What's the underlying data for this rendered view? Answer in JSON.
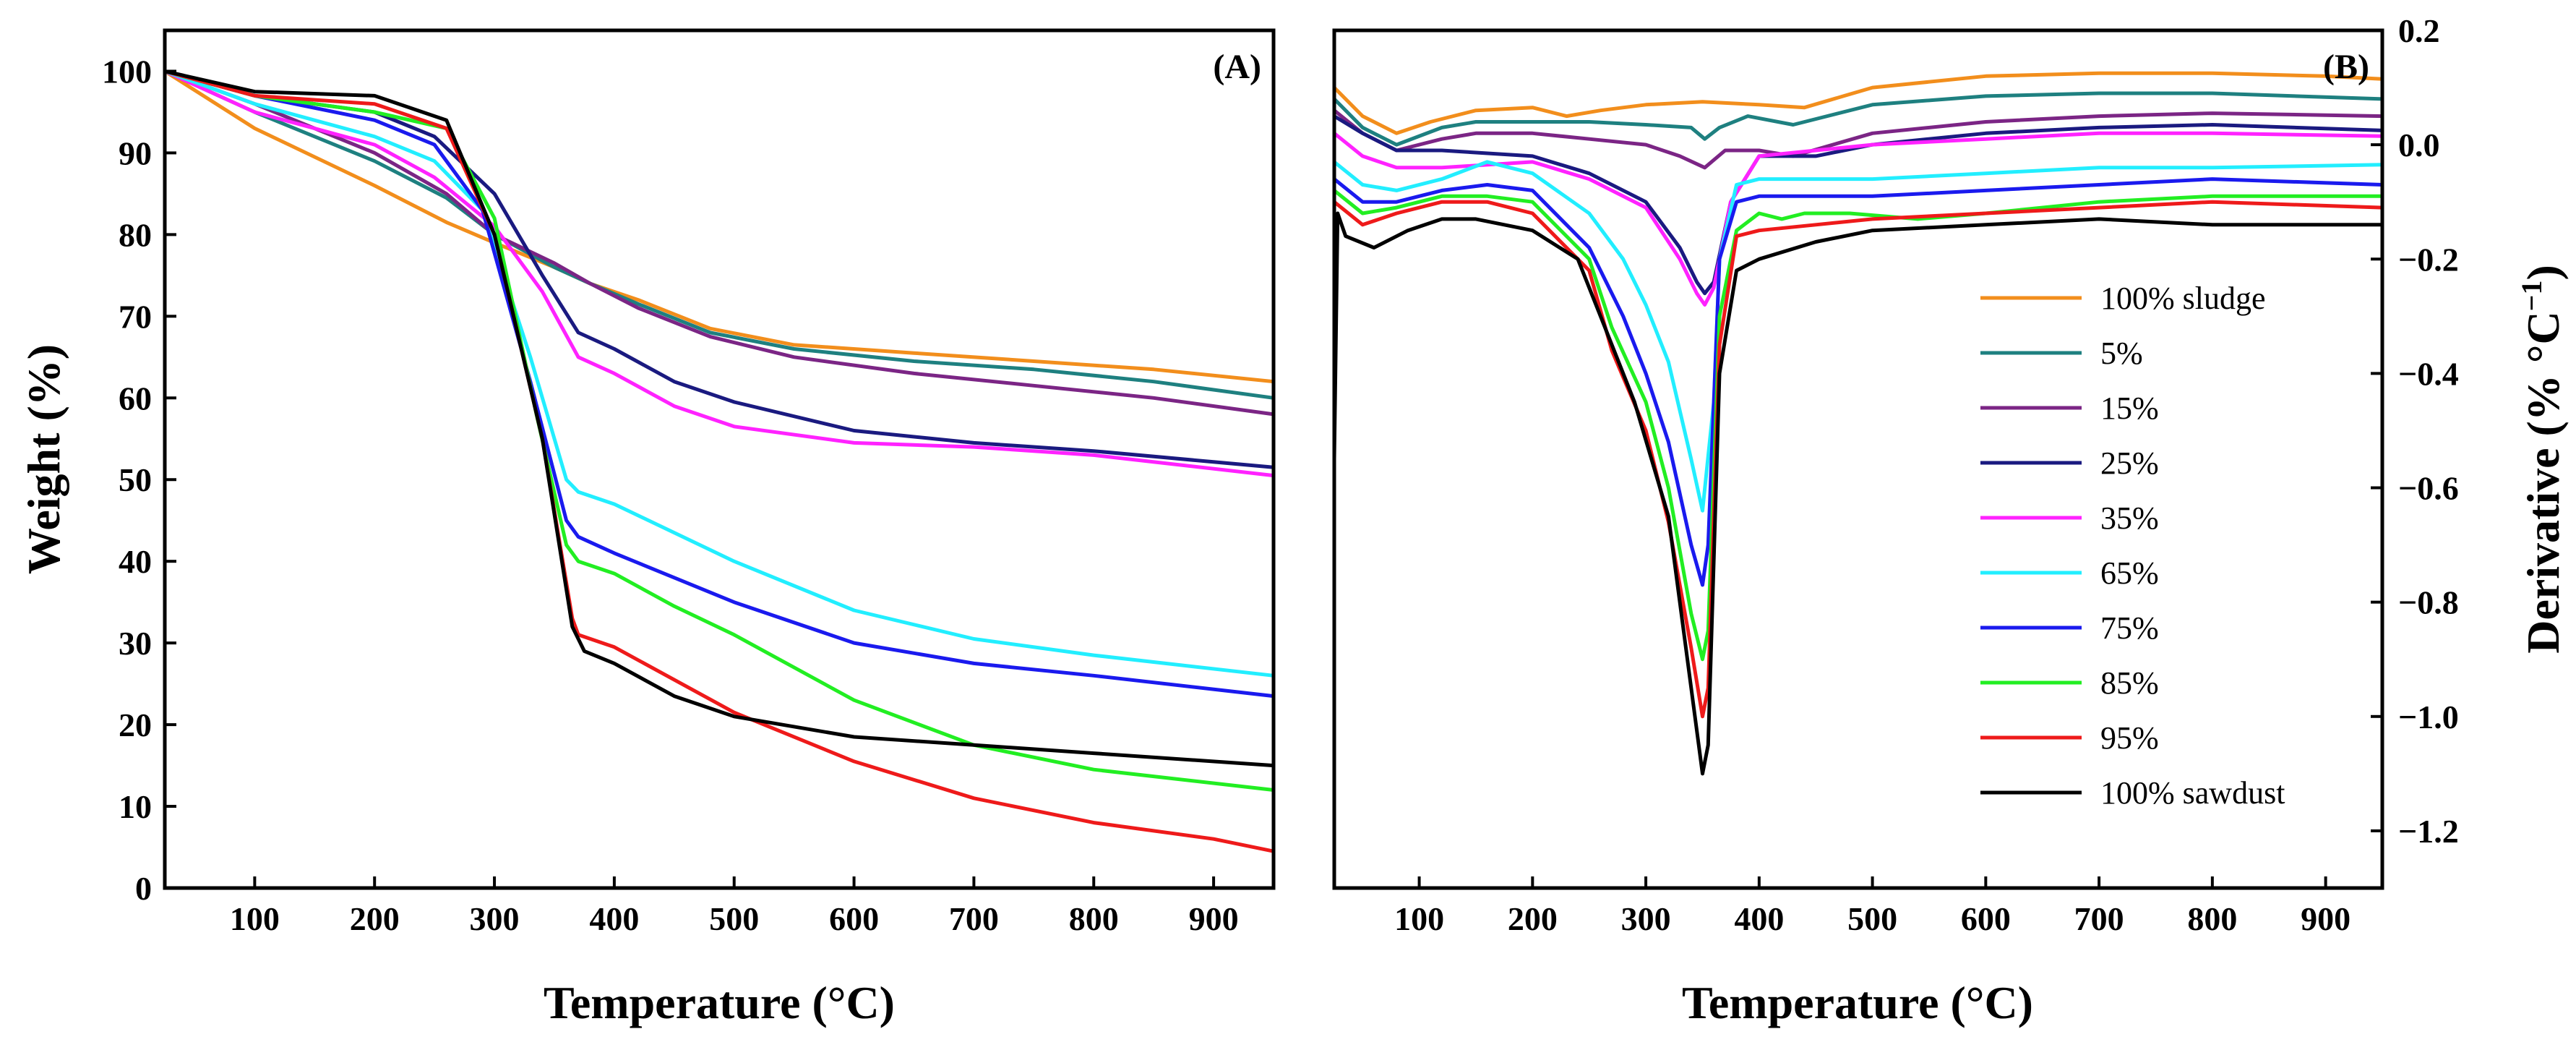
{
  "chart_data": [
    {
      "panel_label": "(A)",
      "type": "line",
      "xlabel": "Temperature (°C)",
      "ylabel": "Weight (%)",
      "xlim": [
        25,
        950
      ],
      "ylim": [
        0,
        105
      ],
      "xticks": [
        "100",
        "200",
        "300",
        "400",
        "500",
        "600",
        "700",
        "800",
        "900"
      ],
      "yticks": [
        "0",
        "10",
        "20",
        "30",
        "40",
        "50",
        "60",
        "70",
        "80",
        "90",
        "100"
      ],
      "grid": false,
      "series": [
        {
          "name": "100% sludge",
          "color": "#f28e1c",
          "x": [
            25,
            100,
            200,
            260,
            300,
            350,
            380,
            420,
            480,
            550,
            650,
            750,
            850,
            950
          ],
          "y": [
            100,
            93,
            86,
            81.5,
            79,
            76,
            74,
            72,
            68.5,
            66.5,
            65.5,
            64.5,
            63.5,
            62
          ]
        },
        {
          "name": "5%",
          "color": "#1e8080",
          "x": [
            25,
            100,
            200,
            260,
            300,
            350,
            380,
            420,
            480,
            550,
            650,
            750,
            850,
            950
          ],
          "y": [
            100,
            95,
            89,
            84.5,
            80,
            76,
            74,
            71.5,
            68,
            66,
            64.5,
            63.5,
            62,
            60
          ]
        },
        {
          "name": "15%",
          "color": "#7b2585",
          "x": [
            25,
            100,
            200,
            260,
            300,
            350,
            380,
            420,
            480,
            550,
            650,
            750,
            850,
            950
          ],
          "y": [
            100,
            96,
            90,
            85,
            80,
            76.5,
            74,
            71,
            67.5,
            65,
            63,
            61.5,
            60,
            58
          ]
        },
        {
          "name": "25%",
          "color": "#1a1a80",
          "x": [
            25,
            100,
            200,
            250,
            300,
            340,
            370,
            400,
            450,
            500,
            600,
            700,
            800,
            950
          ],
          "y": [
            100,
            97,
            95,
            92,
            85,
            75,
            68,
            66,
            62,
            59.5,
            56,
            54.5,
            53.5,
            51.5
          ]
        },
        {
          "name": "35%",
          "color": "#ff22ff",
          "x": [
            25,
            100,
            200,
            250,
            300,
            340,
            370,
            400,
            450,
            500,
            600,
            700,
            800,
            950
          ],
          "y": [
            100,
            95,
            91,
            87,
            81,
            73,
            65,
            63,
            59,
            56.5,
            54.5,
            54,
            53,
            50.5
          ]
        },
        {
          "name": "65%",
          "color": "#22eeff",
          "x": [
            25,
            100,
            200,
            250,
            290,
            330,
            360,
            370,
            400,
            500,
            600,
            700,
            800,
            950
          ],
          "y": [
            100,
            96,
            92,
            89,
            83,
            65,
            50,
            48.5,
            47,
            40,
            34,
            30.5,
            28.5,
            26
          ]
        },
        {
          "name": "75%",
          "color": "#1a1aee",
          "x": [
            25,
            100,
            200,
            250,
            290,
            330,
            360,
            370,
            400,
            500,
            600,
            700,
            800,
            950
          ],
          "y": [
            100,
            97,
            94,
            91,
            83,
            62,
            45,
            43,
            41,
            35,
            30,
            27.5,
            26,
            23.5
          ]
        },
        {
          "name": "85%",
          "color": "#22ee22",
          "x": [
            25,
            100,
            200,
            260,
            300,
            335,
            360,
            370,
            400,
            450,
            500,
            600,
            700,
            800,
            950
          ],
          "y": [
            100,
            97,
            95,
            93,
            82,
            58,
            42,
            40,
            38.5,
            34.5,
            31,
            23,
            17.5,
            14.5,
            12
          ]
        },
        {
          "name": "95%",
          "color": "#ee1a1a",
          "x": [
            25,
            100,
            200,
            260,
            300,
            340,
            365,
            370,
            400,
            500,
            600,
            700,
            800,
            900,
            950
          ],
          "y": [
            100,
            97,
            96,
            93,
            80,
            55,
            33,
            31,
            29.5,
            21.5,
            15.5,
            11,
            8,
            6,
            4.5
          ]
        },
        {
          "name": "100% sawdust",
          "color": "#000000",
          "x": [
            25,
            100,
            200,
            260,
            300,
            340,
            365,
            375,
            400,
            450,
            500,
            600,
            700,
            800,
            950
          ],
          "y": [
            100,
            97.5,
            97,
            94,
            80,
            55,
            32,
            29,
            27.5,
            23.5,
            21,
            18.5,
            17.5,
            16.5,
            15
          ]
        }
      ]
    },
    {
      "panel_label": "(B)",
      "type": "line",
      "xlabel": "Temperature (°C)",
      "ylabel": "Derivative (% °C",
      "ylabel_sup": "−1",
      "ylabel_close": ")",
      "xlim": [
        25,
        950
      ],
      "ylim": [
        -1.3,
        0.2
      ],
      "xticks": [
        "100",
        "200",
        "300",
        "400",
        "500",
        "600",
        "700",
        "800",
        "900"
      ],
      "yticks": [
        "0.2",
        "0.0",
        "−0.2",
        "−0.4",
        "−0.6",
        "−0.8",
        "−1.0",
        "−1.2"
      ],
      "ytick_values": [
        0.2,
        0.0,
        -0.2,
        -0.4,
        -0.6,
        -0.8,
        -1.0,
        -1.2
      ],
      "legend_position": "right",
      "grid": false,
      "series": [
        {
          "name": "100% sludge",
          "color": "#f28e1c",
          "x": [
            25,
            50,
            80,
            110,
            150,
            200,
            230,
            260,
            300,
            350,
            400,
            440,
            500,
            600,
            700,
            800,
            900,
            950
          ],
          "y": [
            0.1,
            0.05,
            0.02,
            0.04,
            0.06,
            0.065,
            0.05,
            0.06,
            0.07,
            0.075,
            0.07,
            0.065,
            0.1,
            0.12,
            0.125,
            0.125,
            0.12,
            0.115
          ]
        },
        {
          "name": "5%",
          "color": "#1e8080",
          "x": [
            25,
            50,
            80,
            120,
            150,
            200,
            250,
            300,
            340,
            352,
            365,
            390,
            430,
            500,
            600,
            700,
            800,
            950
          ],
          "y": [
            0.08,
            0.03,
            0.0,
            0.03,
            0.04,
            0.04,
            0.04,
            0.035,
            0.03,
            0.01,
            0.03,
            0.05,
            0.035,
            0.07,
            0.085,
            0.09,
            0.09,
            0.08
          ]
        },
        {
          "name": "15%",
          "color": "#7b2585",
          "x": [
            25,
            50,
            80,
            120,
            150,
            200,
            250,
            300,
            330,
            352,
            370,
            400,
            430,
            500,
            600,
            700,
            800,
            950
          ],
          "y": [
            0.06,
            0.02,
            -0.01,
            0.01,
            0.02,
            0.02,
            0.01,
            0.0,
            -0.02,
            -0.04,
            -0.01,
            -0.01,
            -0.02,
            0.02,
            0.04,
            0.05,
            0.055,
            0.05
          ]
        },
        {
          "name": "25%",
          "color": "#1a1a80",
          "x": [
            25,
            50,
            80,
            120,
            200,
            250,
            300,
            330,
            345,
            352,
            360,
            375,
            400,
            450,
            500,
            600,
            700,
            800,
            950
          ],
          "y": [
            0.05,
            0.02,
            -0.01,
            -0.01,
            -0.02,
            -0.05,
            -0.1,
            -0.18,
            -0.24,
            -0.26,
            -0.24,
            -0.1,
            -0.02,
            -0.02,
            0.0,
            0.02,
            0.03,
            0.035,
            0.025
          ]
        },
        {
          "name": "35%",
          "color": "#ff22ff",
          "x": [
            25,
            50,
            80,
            120,
            200,
            250,
            300,
            330,
            345,
            352,
            360,
            375,
            400,
            450,
            500,
            600,
            700,
            800,
            950
          ],
          "y": [
            0.02,
            -0.02,
            -0.04,
            -0.04,
            -0.03,
            -0.06,
            -0.11,
            -0.2,
            -0.26,
            -0.28,
            -0.25,
            -0.1,
            -0.02,
            -0.01,
            0.0,
            0.01,
            0.02,
            0.02,
            0.015
          ]
        },
        {
          "name": "65%",
          "color": "#22eeff",
          "x": [
            25,
            50,
            80,
            120,
            160,
            200,
            250,
            280,
            300,
            320,
            340,
            350,
            360,
            365,
            380,
            400,
            450,
            500,
            600,
            700,
            800,
            950
          ],
          "y": [
            -0.03,
            -0.07,
            -0.08,
            -0.06,
            -0.03,
            -0.05,
            -0.12,
            -0.2,
            -0.28,
            -0.38,
            -0.55,
            -0.64,
            -0.45,
            -0.2,
            -0.07,
            -0.06,
            -0.06,
            -0.06,
            -0.05,
            -0.04,
            -0.04,
            -0.035
          ]
        },
        {
          "name": "75%",
          "color": "#1a1aee",
          "x": [
            25,
            50,
            80,
            120,
            160,
            200,
            250,
            280,
            300,
            320,
            340,
            350,
            355,
            365,
            380,
            400,
            450,
            500,
            600,
            700,
            800,
            950
          ],
          "y": [
            -0.06,
            -0.1,
            -0.1,
            -0.08,
            -0.07,
            -0.08,
            -0.18,
            -0.3,
            -0.4,
            -0.52,
            -0.7,
            -0.77,
            -0.7,
            -0.2,
            -0.1,
            -0.09,
            -0.09,
            -0.09,
            -0.08,
            -0.07,
            -0.06,
            -0.07
          ]
        },
        {
          "name": "85%",
          "color": "#22ee22",
          "x": [
            25,
            50,
            80,
            120,
            160,
            200,
            250,
            270,
            300,
            320,
            340,
            350,
            355,
            365,
            380,
            400,
            420,
            440,
            480,
            540,
            600,
            700,
            800,
            950
          ],
          "y": [
            -0.08,
            -0.12,
            -0.11,
            -0.09,
            -0.09,
            -0.1,
            -0.2,
            -0.32,
            -0.45,
            -0.6,
            -0.82,
            -0.9,
            -0.85,
            -0.3,
            -0.15,
            -0.12,
            -0.13,
            -0.12,
            -0.12,
            -0.13,
            -0.12,
            -0.1,
            -0.09,
            -0.09
          ]
        },
        {
          "name": "95%",
          "color": "#ee1a1a",
          "x": [
            25,
            50,
            80,
            120,
            160,
            200,
            250,
            270,
            300,
            320,
            340,
            350,
            355,
            365,
            380,
            400,
            450,
            500,
            600,
            700,
            800,
            950
          ],
          "y": [
            -0.1,
            -0.14,
            -0.12,
            -0.1,
            -0.1,
            -0.12,
            -0.22,
            -0.36,
            -0.5,
            -0.66,
            -0.88,
            -1.0,
            -0.95,
            -0.35,
            -0.16,
            -0.15,
            -0.14,
            -0.13,
            -0.12,
            -0.11,
            -0.1,
            -0.11
          ]
        },
        {
          "name": "100% sawdust",
          "color": "#000000",
          "x": [
            25,
            28,
            35,
            60,
            90,
            120,
            150,
            200,
            240,
            260,
            290,
            320,
            340,
            350,
            355,
            365,
            380,
            400,
            450,
            500,
            600,
            700,
            800,
            950
          ],
          "y": [
            -0.55,
            -0.12,
            -0.16,
            -0.18,
            -0.15,
            -0.13,
            -0.13,
            -0.15,
            -0.2,
            -0.3,
            -0.45,
            -0.65,
            -0.95,
            -1.1,
            -1.05,
            -0.4,
            -0.22,
            -0.2,
            -0.17,
            -0.15,
            -0.14,
            -0.13,
            -0.14,
            -0.14
          ]
        }
      ]
    }
  ]
}
